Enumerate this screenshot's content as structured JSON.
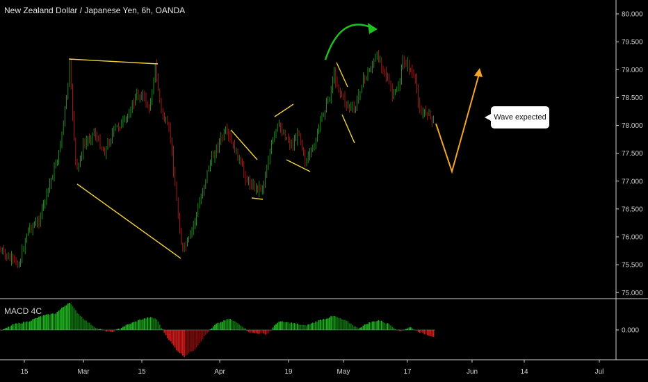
{
  "chart_title": "New Zealand Dollar / Japanese Yen, 6h, OANDA",
  "macd_label": "MACD 4C",
  "annotation": "Wave expected",
  "colors": {
    "up": "#1fb21f",
    "down": "#d01a1a",
    "pattern": "#f2d33c",
    "forecast": "#f5a623",
    "arrow": "#20c020",
    "grid": "#333333"
  },
  "chart_data": [
    {
      "type": "candlestick",
      "yaxis": {
        "side": "right",
        "ylim": [
          74.9,
          80.2
        ],
        "ticks": [
          "80.000",
          "79.500",
          "79.000",
          "78.500",
          "78.000",
          "77.500",
          "77.000",
          "76.500",
          "76.000",
          "75.500",
          "75.000"
        ]
      },
      "xaxis": {
        "ticks": [
          "15",
          "Mar",
          "15",
          "Apr",
          "19",
          "May",
          "17",
          "Jun",
          "14",
          "Jul"
        ]
      },
      "price_path": [
        {
          "x": "early Feb",
          "y": 75.8
        },
        {
          "x": "Feb 22",
          "y": 79.0
        },
        {
          "x": "Feb 25",
          "y": 77.5
        },
        {
          "x": "Mar 15",
          "y": 78.6
        },
        {
          "x": "Mar 17",
          "y": 79.1
        },
        {
          "x": "Mar 23",
          "y": 75.7
        },
        {
          "x": "Apr 1",
          "y": 77.9
        },
        {
          "x": "Apr 8",
          "y": 76.9
        },
        {
          "x": "Apr 14",
          "y": 78.1
        },
        {
          "x": "Apr 19",
          "y": 77.5
        },
        {
          "x": "Apr 29",
          "y": 79.0
        },
        {
          "x": "May 3",
          "y": 78.1
        },
        {
          "x": "May 11",
          "y": 79.4
        },
        {
          "x": "May 14",
          "y": 78.4
        },
        {
          "x": "May 17",
          "y": 79.3
        },
        {
          "x": "May 24",
          "y": 78.0
        }
      ],
      "drawings": {
        "patterns": "yellow wedge and channel trendlines",
        "forecast": [
          {
            "x": "May 24",
            "y": 78.0
          },
          {
            "x": "Jun 1",
            "y": 77.2
          },
          {
            "x": "Jun 6",
            "y": 79.05
          }
        ]
      }
    },
    {
      "type": "bar",
      "name": "MACD 4C",
      "yaxis": {
        "ticks": [
          "0.000"
        ]
      },
      "values_note": "histogram around zero, large positive peak late Feb, large negative trough late Mar"
    }
  ]
}
